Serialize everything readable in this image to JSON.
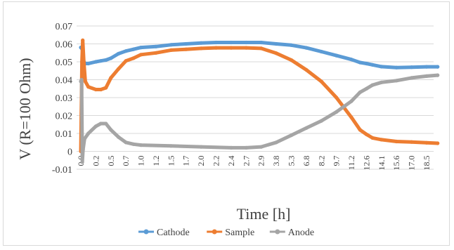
{
  "chart_data": {
    "type": "line",
    "xlabel": "Time [h]",
    "ylabel": "V (R=100 Ohm)",
    "ylim": [
      -0.01,
      0.07
    ],
    "yticks": [
      -0.01,
      0,
      0.01,
      0.02,
      0.03,
      0.04,
      0.05,
      0.06,
      0.07
    ],
    "ytick_labels": [
      "-0.01",
      "0",
      "0.01",
      "0.02",
      "0.03",
      "0.04",
      "0.05",
      "0.06",
      "0.07"
    ],
    "x_tick_labels": [
      "0.0",
      "0.2",
      "0.5",
      "0.7",
      "1.0",
      "1.2",
      "1.5",
      "1.7",
      "2.0",
      "2.2",
      "2.4",
      "2.7",
      "2.9",
      "3.8",
      "5.3",
      "6.8",
      "8.2",
      "9.7",
      "11.2",
      "12.6",
      "14.1",
      "15.6",
      "17.0",
      "18.5"
    ],
    "grid": "horizontal",
    "legend_position": "bottom",
    "series": [
      {
        "name": "Cathode",
        "color": "#5b9bd5",
        "points": [
          [
            0.0,
            0.058
          ],
          [
            0.02,
            0.057
          ],
          [
            0.04,
            0.05
          ],
          [
            0.06,
            0.049
          ],
          [
            0.1,
            0.049
          ],
          [
            0.2,
            0.05
          ],
          [
            0.3,
            0.0505
          ],
          [
            0.4,
            0.051
          ],
          [
            0.5,
            0.052
          ],
          [
            0.6,
            0.0545
          ],
          [
            0.7,
            0.056
          ],
          [
            0.85,
            0.057
          ],
          [
            1.0,
            0.058
          ],
          [
            1.2,
            0.0585
          ],
          [
            1.5,
            0.0595
          ],
          [
            1.7,
            0.06
          ],
          [
            2.0,
            0.0605
          ],
          [
            2.2,
            0.0608
          ],
          [
            2.4,
            0.0608
          ],
          [
            2.7,
            0.0608
          ],
          [
            2.9,
            0.0608
          ],
          [
            3.8,
            0.06
          ],
          [
            5.3,
            0.0593
          ],
          [
            6.8,
            0.0578
          ],
          [
            8.2,
            0.0557
          ],
          [
            9.7,
            0.0535
          ],
          [
            11.2,
            0.0513
          ],
          [
            12.0,
            0.0496
          ],
          [
            12.6,
            0.049
          ],
          [
            13.2,
            0.0483
          ],
          [
            14.1,
            0.0473
          ],
          [
            15.6,
            0.0468
          ],
          [
            17.0,
            0.047
          ],
          [
            18.5,
            0.0472
          ],
          [
            19.6,
            0.0472
          ]
        ]
      },
      {
        "name": "Sample",
        "color": "#ed7d31",
        "points": [
          [
            0.0,
            0.0
          ],
          [
            0.015,
            0.05
          ],
          [
            0.025,
            0.062
          ],
          [
            0.04,
            0.05
          ],
          [
            0.06,
            0.039
          ],
          [
            0.1,
            0.036
          ],
          [
            0.2,
            0.0345
          ],
          [
            0.3,
            0.0345
          ],
          [
            0.4,
            0.0355
          ],
          [
            0.5,
            0.041
          ],
          [
            0.6,
            0.046
          ],
          [
            0.7,
            0.0505
          ],
          [
            0.85,
            0.052
          ],
          [
            1.0,
            0.054
          ],
          [
            1.2,
            0.055
          ],
          [
            1.5,
            0.0565
          ],
          [
            1.7,
            0.057
          ],
          [
            2.0,
            0.0575
          ],
          [
            2.2,
            0.0578
          ],
          [
            2.4,
            0.0578
          ],
          [
            2.7,
            0.0578
          ],
          [
            2.9,
            0.0575
          ],
          [
            3.8,
            0.0548
          ],
          [
            5.3,
            0.051
          ],
          [
            6.8,
            0.0455
          ],
          [
            8.2,
            0.039
          ],
          [
            9.7,
            0.03
          ],
          [
            11.2,
            0.019
          ],
          [
            12.0,
            0.012
          ],
          [
            12.6,
            0.0095
          ],
          [
            13.2,
            0.0075
          ],
          [
            14.1,
            0.0065
          ],
          [
            15.6,
            0.0055
          ],
          [
            17.0,
            0.0052
          ],
          [
            18.5,
            0.0048
          ],
          [
            19.6,
            0.0045
          ]
        ]
      },
      {
        "name": "Anode",
        "color": "#a5a5a5",
        "points": [
          [
            0.0,
            0.039
          ],
          [
            0.01,
            0.04
          ],
          [
            0.02,
            -0.006
          ],
          [
            0.03,
            0.001
          ],
          [
            0.05,
            0.007
          ],
          [
            0.1,
            0.01
          ],
          [
            0.2,
            0.014
          ],
          [
            0.3,
            0.0155
          ],
          [
            0.4,
            0.0155
          ],
          [
            0.5,
            0.012
          ],
          [
            0.6,
            0.008
          ],
          [
            0.7,
            0.005
          ],
          [
            0.85,
            0.004
          ],
          [
            1.0,
            0.0035
          ],
          [
            1.5,
            0.003
          ],
          [
            2.0,
            0.0025
          ],
          [
            2.4,
            0.002
          ],
          [
            2.7,
            0.002
          ],
          [
            2.9,
            0.0025
          ],
          [
            3.8,
            0.005
          ],
          [
            5.3,
            0.009
          ],
          [
            6.8,
            0.013
          ],
          [
            8.2,
            0.017
          ],
          [
            9.7,
            0.022
          ],
          [
            11.2,
            0.028
          ],
          [
            12.0,
            0.033
          ],
          [
            12.6,
            0.035
          ],
          [
            13.2,
            0.037
          ],
          [
            14.1,
            0.0385
          ],
          [
            15.6,
            0.0395
          ],
          [
            17.0,
            0.041
          ],
          [
            18.5,
            0.042
          ],
          [
            19.6,
            0.0425
          ]
        ]
      }
    ]
  }
}
